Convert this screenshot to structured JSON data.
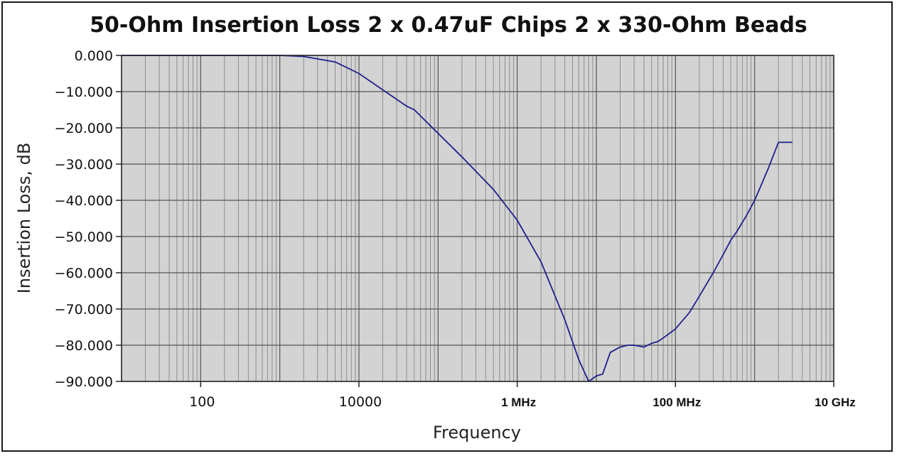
{
  "chart_data": {
    "type": "line",
    "title": "50-Ohm Insertion Loss 2 x 0.47uF Chips 2 x 330-Ohm Beads",
    "xlabel": "Frequency",
    "ylabel": "Insertion Loss, dB",
    "x_scale": "log",
    "xlim": [
      10,
      10000000000
    ],
    "ylim": [
      -90,
      0
    ],
    "grid": true,
    "legend": "none",
    "colors": {
      "plot_background": "#d3d3d3",
      "line": "#1f1f8c",
      "grid": "#707070"
    },
    "y_ticks": [
      {
        "value": 0,
        "label": "0.000"
      },
      {
        "value": -10,
        "label": "−10.000"
      },
      {
        "value": -20,
        "label": "−20.000"
      },
      {
        "value": -30,
        "label": "−30.000"
      },
      {
        "value": -40,
        "label": "−40.000"
      },
      {
        "value": -50,
        "label": "−50.000"
      },
      {
        "value": -60,
        "label": "−60.000"
      },
      {
        "value": -70,
        "label": "−70.000"
      },
      {
        "value": -80,
        "label": "−80.000"
      },
      {
        "value": -90,
        "label": "−90.000"
      }
    ],
    "x_ticks": [
      {
        "value": 100,
        "label": "100",
        "bold": false
      },
      {
        "value": 10000,
        "label": "10000",
        "bold": false
      },
      {
        "value": 1000000,
        "label": "1 MHz",
        "bold": true
      },
      {
        "value": 100000000,
        "label": "100 MHz",
        "bold": true
      },
      {
        "value": 10000000000,
        "label": "10 GHz",
        "bold": true
      }
    ],
    "series": [
      {
        "x": [
          10,
          100,
          1000,
          2000,
          5000,
          10000,
          20000,
          40000,
          50000,
          100000,
          200000,
          500000,
          1000000,
          2000000,
          4000000,
          6000000,
          8000000,
          10000000,
          12000000,
          15000000,
          20000000,
          25000000,
          30000000,
          40000000,
          50000000,
          60000000,
          70000000,
          100000000,
          150000000,
          200000000,
          300000000,
          400000000,
          500000000,
          600000000,
          800000000,
          1000000000,
          1200000000,
          1500000000,
          2000000000,
          2500000000,
          3000000000
        ],
        "y": [
          0,
          0,
          0,
          -0.3,
          -1.8,
          -5,
          -9.5,
          -14,
          -15,
          -21.5,
          -28,
          -37,
          -45.5,
          -57,
          -73,
          -84,
          -90,
          -88.5,
          -88,
          -82,
          -80.5,
          -80,
          -80,
          -80.5,
          -79.5,
          -79,
          -78,
          -75.5,
          -71,
          -66.5,
          -60,
          -55,
          -51,
          -48.5,
          -44,
          -40,
          -36,
          -31,
          -24,
          -24,
          -24
        ]
      }
    ]
  }
}
